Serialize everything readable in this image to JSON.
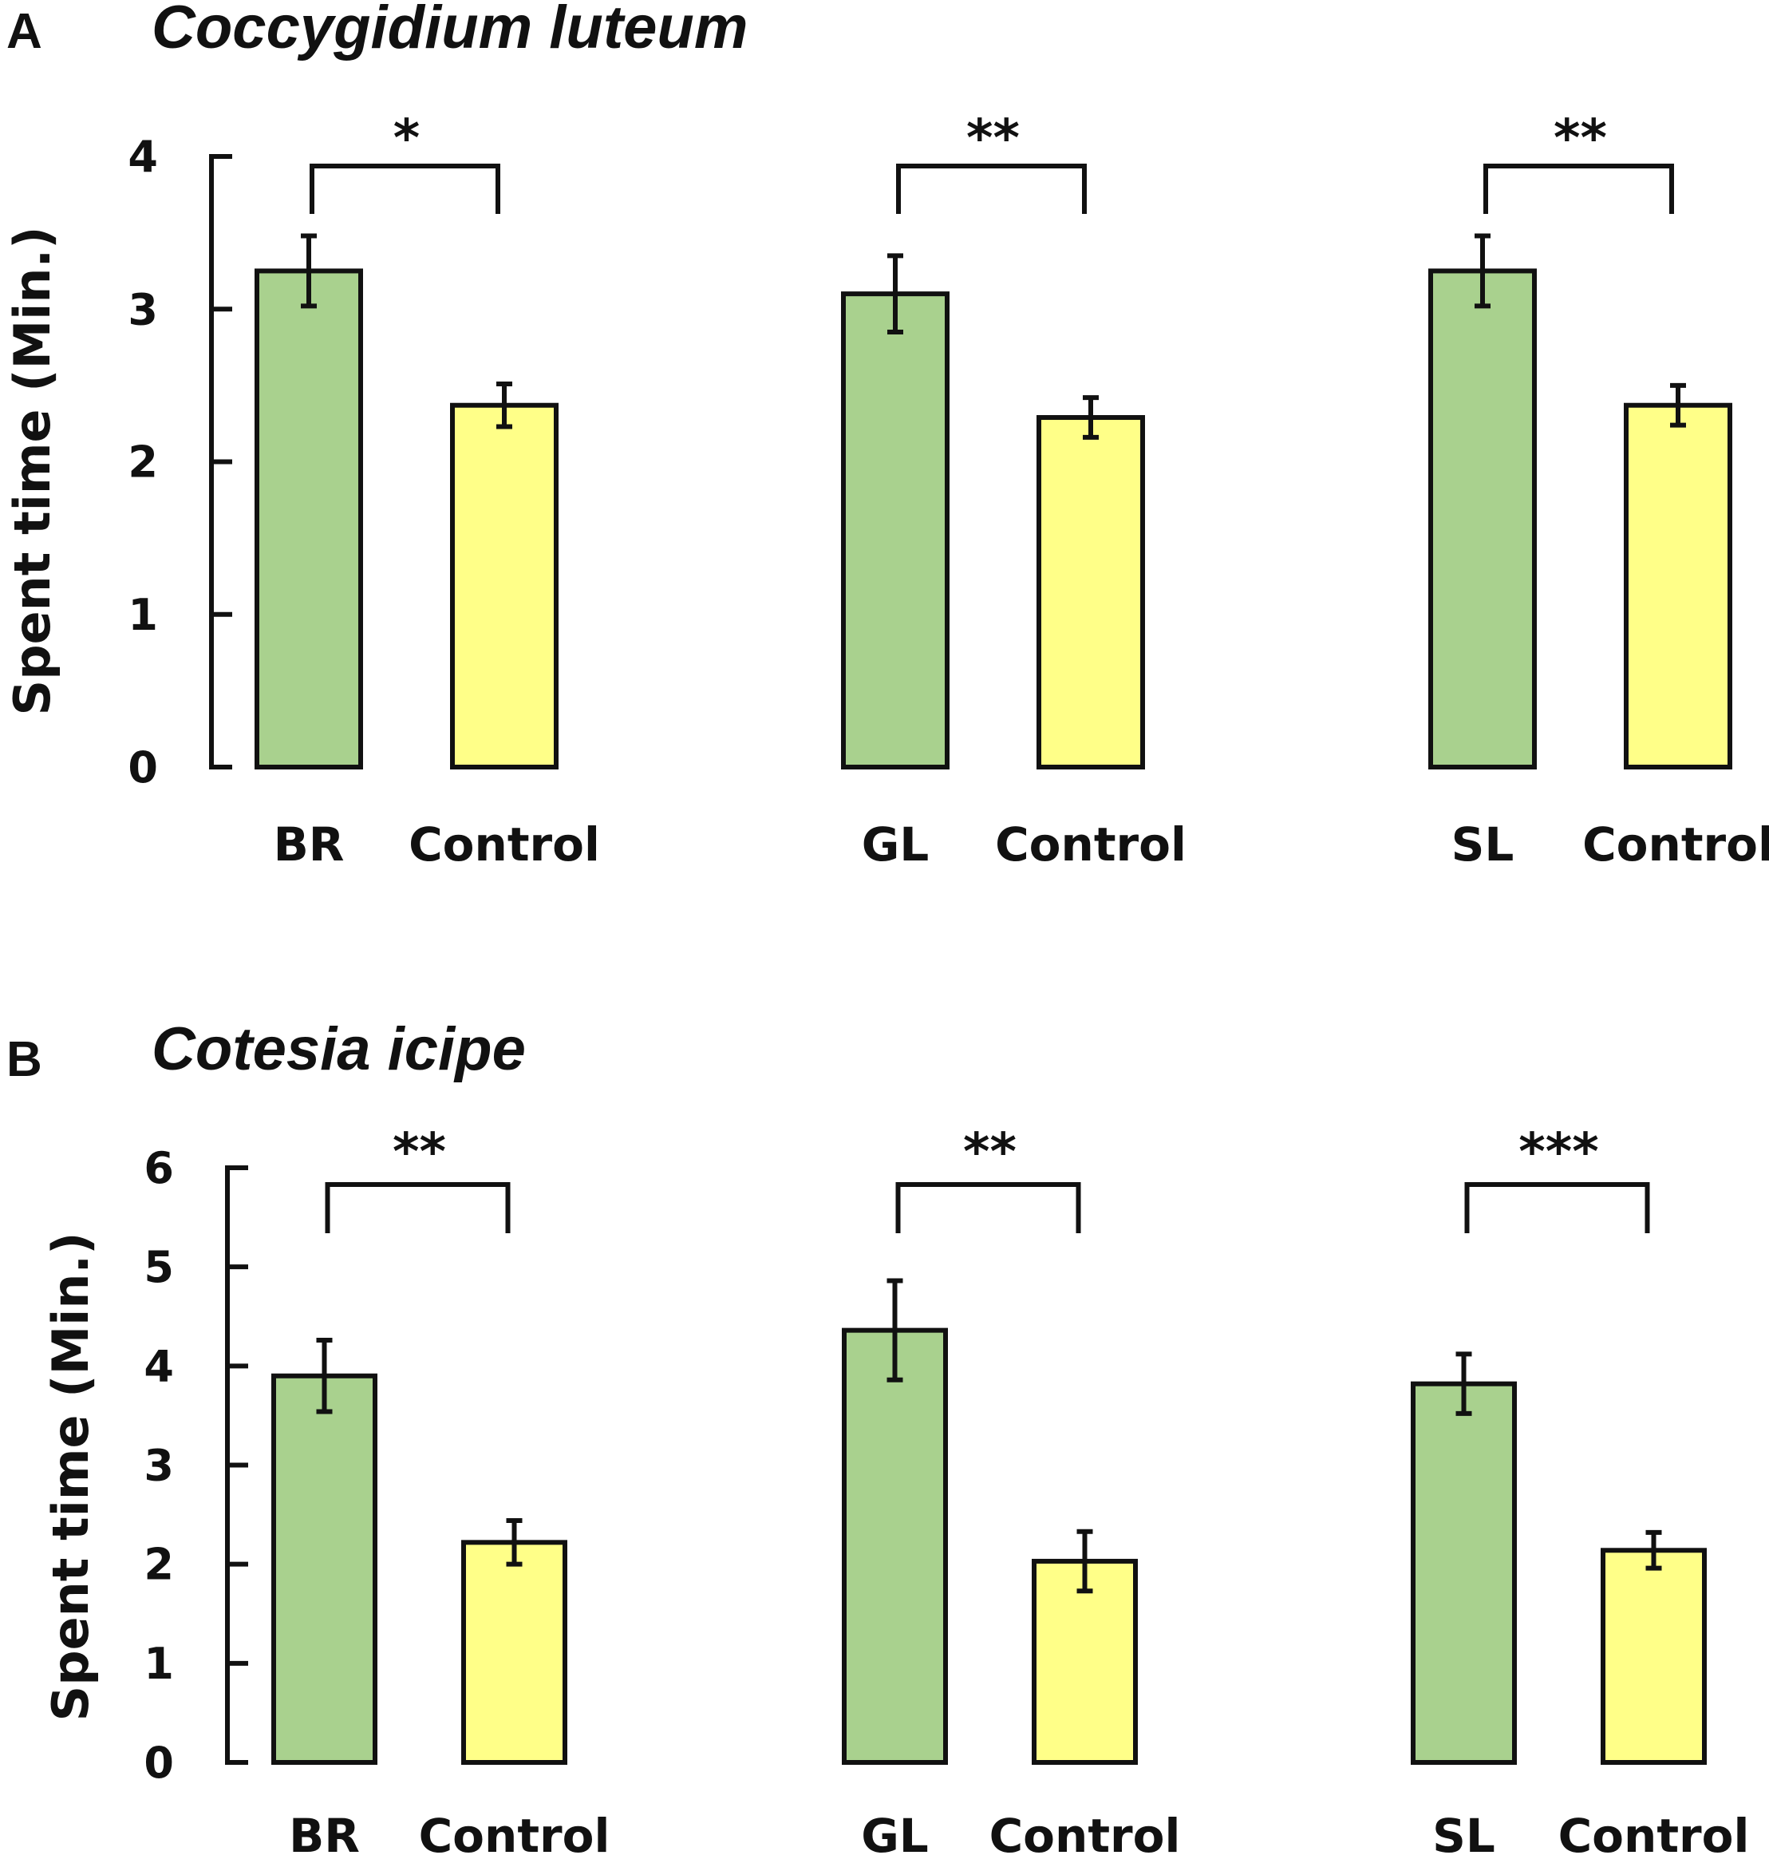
{
  "colors": {
    "treatment": "#a9d18e",
    "control": "#ffff88",
    "stroke": "#111111"
  },
  "chart_data": [
    {
      "type": "bar",
      "panel_letter": "A",
      "title": "Coccygidium luteum",
      "ylabel": "Spent time (Min.)",
      "ylim": [
        0,
        4
      ],
      "yticks": [
        "0",
        "1",
        "2",
        "3",
        "4"
      ],
      "groups": [
        {
          "bars": [
            {
              "label": "BR",
              "value": 3.25,
              "error": 0.23,
              "kind": "treatment"
            },
            {
              "label": "Control",
              "value": 2.37,
              "error": 0.14,
              "kind": "control"
            }
          ],
          "significance": "*"
        },
        {
          "bars": [
            {
              "label": "GL",
              "value": 3.1,
              "error": 0.25,
              "kind": "treatment"
            },
            {
              "label": "Control",
              "value": 2.29,
              "error": 0.13,
              "kind": "control"
            }
          ],
          "significance": "**"
        },
        {
          "bars": [
            {
              "label": "SL",
              "value": 3.25,
              "error": 0.23,
              "kind": "treatment"
            },
            {
              "label": "Control",
              "value": 2.37,
              "error": 0.13,
              "kind": "control"
            }
          ],
          "significance": "**"
        }
      ]
    },
    {
      "type": "bar",
      "panel_letter": "B",
      "title": "Cotesia icipe",
      "ylabel": "Spent time (Min.)",
      "ylim": [
        0,
        6
      ],
      "yticks": [
        "0",
        "1",
        "2",
        "3",
        "4",
        "5",
        "6"
      ],
      "groups": [
        {
          "bars": [
            {
              "label": "BR",
              "value": 3.9,
              "error": 0.36,
              "kind": "treatment"
            },
            {
              "label": "Control",
              "value": 2.22,
              "error": 0.22,
              "kind": "control"
            }
          ],
          "significance": "**"
        },
        {
          "bars": [
            {
              "label": "GL",
              "value": 4.36,
              "error": 0.5,
              "kind": "treatment"
            },
            {
              "label": "Control",
              "value": 2.03,
              "error": 0.3,
              "kind": "control"
            }
          ],
          "significance": "**"
        },
        {
          "bars": [
            {
              "label": "SL",
              "value": 3.82,
              "error": 0.3,
              "kind": "treatment"
            },
            {
              "label": "Control",
              "value": 2.14,
              "error": 0.18,
              "kind": "control"
            }
          ],
          "significance": "***"
        }
      ]
    }
  ]
}
